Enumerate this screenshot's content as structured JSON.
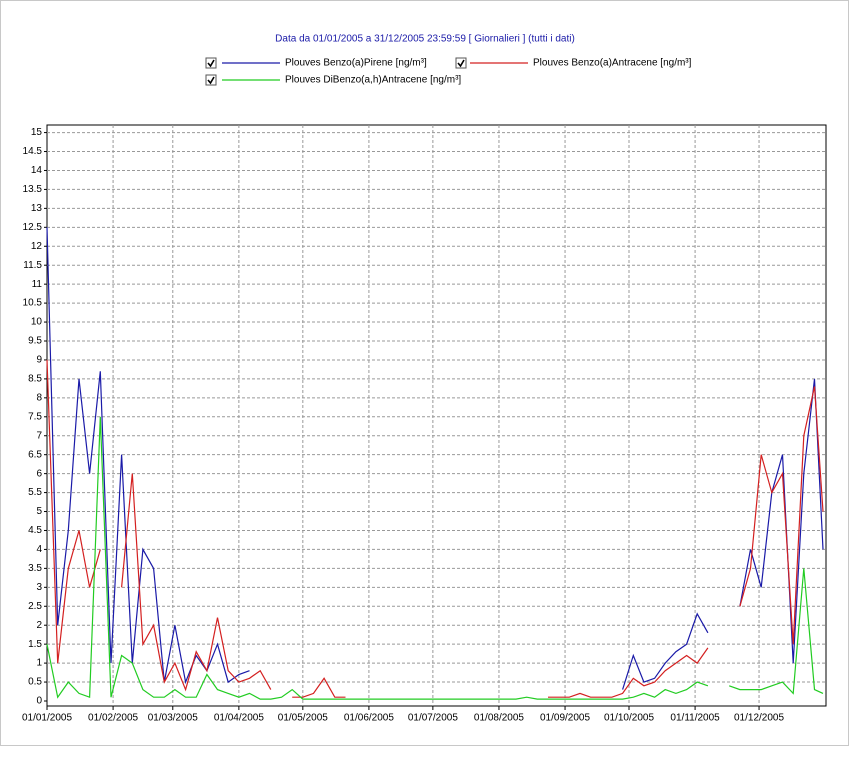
{
  "chart_data": {
    "type": "line",
    "title": "Data da 01/01/2005 a 31/12/2005 23:59:59  [ Giornalieri ] (tutti i dati)",
    "x": [
      "2005-01-01",
      "2005-01-06",
      "2005-01-11",
      "2005-01-16",
      "2005-01-21",
      "2005-01-26",
      "2005-01-31",
      "2005-02-05",
      "2005-02-10",
      "2005-02-15",
      "2005-02-20",
      "2005-02-25",
      "2005-03-02",
      "2005-03-07",
      "2005-03-12",
      "2005-03-17",
      "2005-03-22",
      "2005-03-27",
      "2005-04-01",
      "2005-04-06",
      "2005-04-11",
      "2005-04-16",
      "2005-04-21",
      "2005-04-26",
      "2005-05-01",
      "2005-05-06",
      "2005-05-11",
      "2005-05-16",
      "2005-05-21",
      "2005-05-26",
      "2005-05-31",
      "2005-06-05",
      "2005-06-10",
      "2005-06-15",
      "2005-06-20",
      "2005-06-25",
      "2005-06-30",
      "2005-07-05",
      "2005-07-10",
      "2005-07-15",
      "2005-07-20",
      "2005-07-25",
      "2005-07-30",
      "2005-08-04",
      "2005-08-09",
      "2005-08-14",
      "2005-08-19",
      "2005-08-24",
      "2005-08-29",
      "2005-09-03",
      "2005-09-08",
      "2005-09-13",
      "2005-09-18",
      "2005-09-23",
      "2005-09-28",
      "2005-10-03",
      "2005-10-08",
      "2005-10-13",
      "2005-10-18",
      "2005-10-23",
      "2005-10-28",
      "2005-11-02",
      "2005-11-07",
      "2005-11-12",
      "2005-11-17",
      "2005-11-22",
      "2005-11-27",
      "2005-12-02",
      "2005-12-07",
      "2005-12-12",
      "2005-12-17",
      "2005-12-22",
      "2005-12-27",
      "2005-12-31"
    ],
    "series": [
      {
        "name": "Plouves Benzo(a)Pirene [ng/m³]",
        "color": "#1a1aa8",
        "values": [
          12.5,
          2,
          4.5,
          8.5,
          6,
          8.7,
          1,
          6.5,
          1,
          4,
          3.5,
          0.5,
          2,
          0.5,
          1.2,
          0.8,
          1.5,
          0.5,
          0.7,
          0.8,
          null,
          null,
          null,
          null,
          null,
          null,
          null,
          null,
          null,
          null,
          null,
          null,
          null,
          null,
          null,
          null,
          null,
          null,
          null,
          null,
          null,
          null,
          null,
          null,
          null,
          null,
          null,
          null,
          null,
          null,
          null,
          null,
          null,
          null,
          0.3,
          1.2,
          0.5,
          0.6,
          1,
          1.3,
          1.5,
          2.3,
          1.8,
          null,
          null,
          2.5,
          4,
          3,
          5.5,
          6.5,
          1,
          6,
          8.5,
          4
        ]
      },
      {
        "name": "Plouves Benzo(a)Antracene [ng/m³]",
        "color": "#d42020",
        "values": [
          9,
          1,
          3.5,
          4.5,
          3,
          4,
          null,
          3,
          6,
          1.5,
          2,
          0.5,
          1,
          0.3,
          1.3,
          0.8,
          2.2,
          0.8,
          0.5,
          0.6,
          0.8,
          0.3,
          null,
          0.1,
          0.1,
          0.2,
          0.6,
          0.1,
          0.1,
          null,
          null,
          null,
          0.1,
          null,
          null,
          null,
          null,
          null,
          null,
          null,
          null,
          null,
          null,
          null,
          null,
          null,
          null,
          0.1,
          0.1,
          0.1,
          0.2,
          0.1,
          0.1,
          0.1,
          0.2,
          0.6,
          0.4,
          0.5,
          0.8,
          1,
          1.2,
          1,
          1.4,
          null,
          null,
          2.5,
          3.5,
          6.5,
          5.5,
          6,
          1.5,
          7,
          8.3,
          5
        ]
      },
      {
        "name": "Plouves DiBenzo(a,h)Antracene [ng/m³]",
        "color": "#22cc22",
        "values": [
          1.5,
          0.1,
          0.5,
          0.2,
          0.1,
          7.5,
          0.1,
          1.2,
          1,
          0.3,
          0.1,
          0.1,
          0.3,
          0.1,
          0.1,
          0.7,
          0.3,
          0.2,
          0.1,
          0.2,
          0.05,
          0.05,
          0.1,
          0.3,
          0.05,
          0.05,
          0.05,
          0.05,
          0.05,
          0.05,
          0.05,
          0.05,
          0.05,
          0.05,
          0.05,
          0.05,
          0.05,
          0.05,
          0.05,
          0.05,
          0.05,
          0.05,
          0.05,
          0.05,
          0.05,
          0.1,
          0.05,
          0.05,
          0.05,
          0.05,
          0.05,
          0.05,
          0.05,
          0.05,
          0.05,
          0.1,
          0.2,
          0.1,
          0.3,
          0.2,
          0.3,
          0.5,
          0.4,
          null,
          0.4,
          0.3,
          0.3,
          0.3,
          0.4,
          0.5,
          0.2,
          3.5,
          0.3,
          0.2
        ]
      }
    ],
    "xlim": [
      "2005-01-01",
      "2005-12-31"
    ],
    "xticks": [
      {
        "value": "2005-01-01",
        "label": "01/01/2005"
      },
      {
        "value": "2005-02-01",
        "label": "01/02/2005"
      },
      {
        "value": "2005-03-01",
        "label": "01/03/2005"
      },
      {
        "value": "2005-04-01",
        "label": "01/04/2005"
      },
      {
        "value": "2005-05-01",
        "label": "01/05/2005"
      },
      {
        "value": "2005-06-01",
        "label": "01/06/2005"
      },
      {
        "value": "2005-07-01",
        "label": "01/07/2005"
      },
      {
        "value": "2005-08-01",
        "label": "01/08/2005"
      },
      {
        "value": "2005-09-01",
        "label": "01/09/2005"
      },
      {
        "value": "2005-10-01",
        "label": "01/10/2005"
      },
      {
        "value": "2005-11-01",
        "label": "01/11/2005"
      },
      {
        "value": "2005-12-01",
        "label": "01/12/2005"
      }
    ],
    "ylim": [
      0,
      15.2
    ],
    "yticks": [
      0,
      0.5,
      1,
      1.5,
      2,
      2.5,
      3,
      3.5,
      4,
      4.5,
      5,
      5.5,
      6,
      6.5,
      7,
      7.5,
      8,
      8.5,
      9,
      9.5,
      10,
      10.5,
      11,
      11.5,
      12,
      12.5,
      13,
      13.5,
      14,
      14.5,
      15
    ],
    "grid": true
  }
}
